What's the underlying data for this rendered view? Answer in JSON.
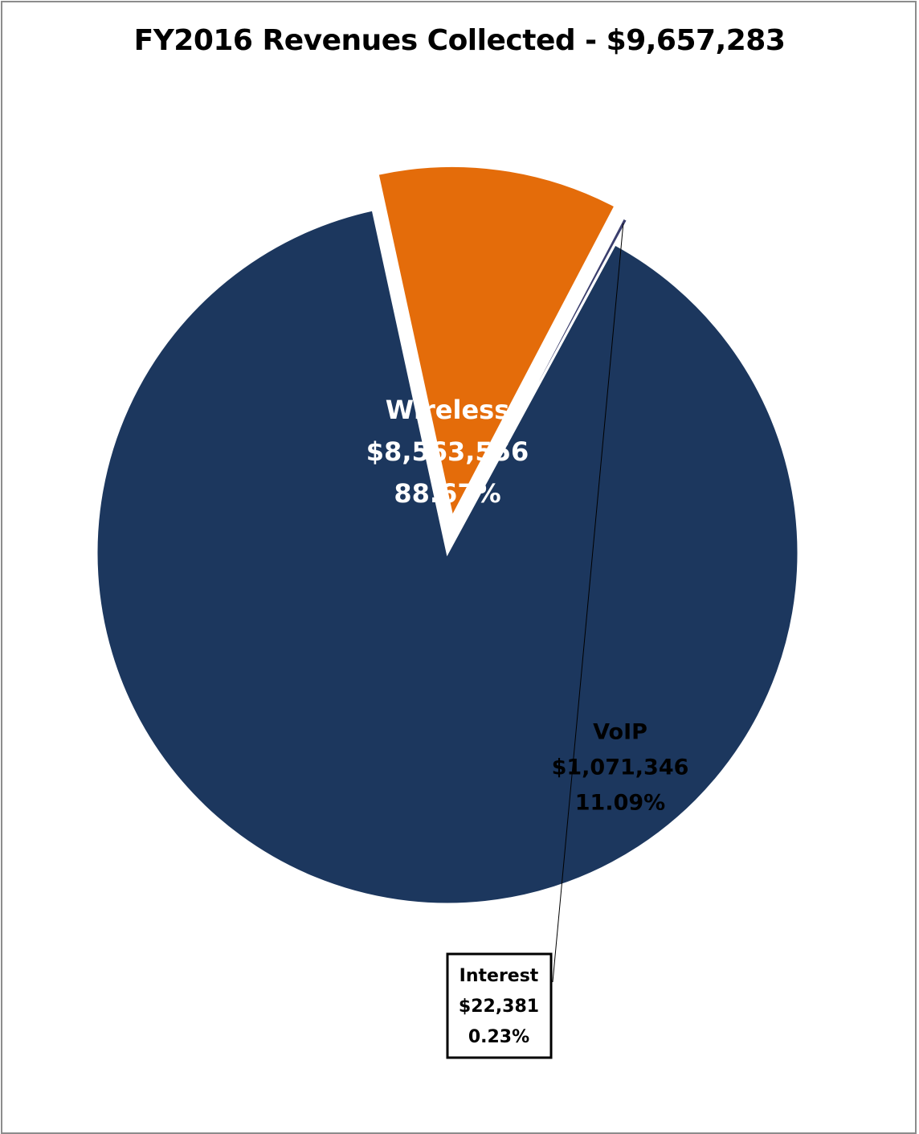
{
  "chart_data": {
    "type": "pie",
    "title": "FY2016 Revenues Collected - $9,657,283",
    "slices": [
      {
        "label": "Wireless",
        "value": 8563556,
        "value_text": "$8,563,556",
        "percent": 88.67,
        "percent_text": "88.67%",
        "color": "#1c375e"
      },
      {
        "label": "VoIP",
        "value": 1071346,
        "value_text": "$1,071,346",
        "percent": 11.09,
        "percent_text": "11.09%",
        "color": "#e46c0a"
      },
      {
        "label": "Interest",
        "value": 22381,
        "value_text": "$22,381",
        "percent": 0.23,
        "percent_text": "0.23%",
        "color": "#3b3f6e"
      }
    ],
    "legend": false
  }
}
